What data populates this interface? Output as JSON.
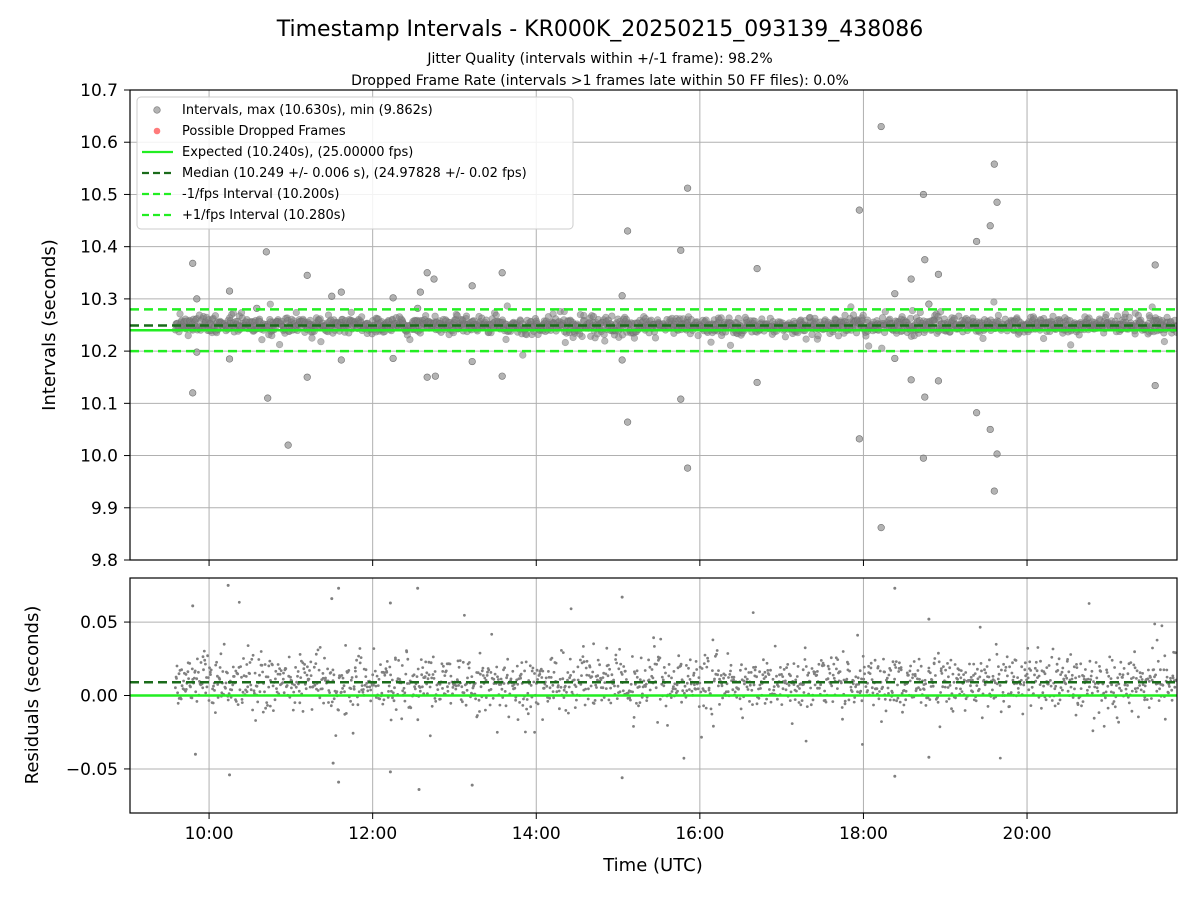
{
  "figure": {
    "title": "Timestamp Intervals - KR000K_20250215_093139_438086",
    "subtitle_1": "Jitter Quality (intervals within +/-1 frame): 98.2%",
    "subtitle_2": "Dropped Frame Rate (intervals >1 frames late within 50 FF files): 0.0%"
  },
  "chart_data": [
    {
      "type": "scatter",
      "name": "intervals-panel",
      "ylabel": "Intervals (seconds)",
      "xlabel": "",
      "xlim": [
        "09:02",
        "21:50"
      ],
      "ylim": [
        9.8,
        10.7
      ],
      "yticks": [
        "9.8",
        "9.9",
        "10.0",
        "10.1",
        "10.2",
        "10.3",
        "10.4",
        "10.5",
        "10.6",
        "10.7"
      ],
      "xticks": [
        "10:00",
        "12:00",
        "14:00",
        "16:00",
        "18:00",
        "20:00"
      ],
      "grid": true,
      "legend_position": "top-left",
      "legend": [
        "Intervals, max (10.630s), min (9.862s)",
        "Possible Dropped Frames",
        "Expected (10.240s), (25.00000 fps)",
        "Median (10.249 +/- 0.006 s), (24.97828 +/- 0.02 fps)",
        "-1/fps Interval (10.200s)",
        "+1/fps Interval (10.280s)"
      ],
      "data_range": {
        "start": "09:35",
        "end": "21:50",
        "center": 10.249,
        "spread": 0.012
      },
      "lines": [
        {
          "name": "Expected (10.240s), (25.00000 fps)",
          "y": 10.24,
          "style": "solid",
          "color": "#22ee22"
        },
        {
          "name": "Median (10.249 +/- 0.006 s), (24.97828 +/- 0.02 fps)",
          "y": 10.249,
          "style": "dashed",
          "color": "#1a6b1a"
        },
        {
          "name": "-1/fps Interval (10.200s)",
          "y": 10.2,
          "style": "dashed",
          "color": "#22ee22"
        },
        {
          "name": "+1/fps Interval (10.280s)",
          "y": 10.28,
          "style": "dashed",
          "color": "#22ee22"
        }
      ],
      "outliers": [
        {
          "x": "09:48",
          "y": 10.368
        },
        {
          "x": "09:48",
          "y": 10.12
        },
        {
          "x": "09:51",
          "y": 10.3
        },
        {
          "x": "09:51",
          "y": 10.198
        },
        {
          "x": "10:15",
          "y": 10.315
        },
        {
          "x": "10:15",
          "y": 10.185
        },
        {
          "x": "10:35",
          "y": 10.282
        },
        {
          "x": "10:42",
          "y": 10.39
        },
        {
          "x": "10:43",
          "y": 10.11
        },
        {
          "x": "10:58",
          "y": 10.02
        },
        {
          "x": "11:12",
          "y": 10.345
        },
        {
          "x": "11:12",
          "y": 10.15
        },
        {
          "x": "11:30",
          "y": 10.305
        },
        {
          "x": "11:37",
          "y": 10.313
        },
        {
          "x": "11:37",
          "y": 10.183
        },
        {
          "x": "12:15",
          "y": 10.302
        },
        {
          "x": "12:15",
          "y": 10.186
        },
        {
          "x": "12:33",
          "y": 10.282
        },
        {
          "x": "12:35",
          "y": 10.313
        },
        {
          "x": "12:40",
          "y": 10.35
        },
        {
          "x": "12:40",
          "y": 10.15
        },
        {
          "x": "12:45",
          "y": 10.338
        },
        {
          "x": "12:46",
          "y": 10.152
        },
        {
          "x": "13:13",
          "y": 10.325
        },
        {
          "x": "13:13",
          "y": 10.18
        },
        {
          "x": "13:35",
          "y": 10.35
        },
        {
          "x": "13:35",
          "y": 10.152
        },
        {
          "x": "15:03",
          "y": 10.306
        },
        {
          "x": "15:03",
          "y": 10.183
        },
        {
          "x": "15:07",
          "y": 10.43
        },
        {
          "x": "15:07",
          "y": 10.064
        },
        {
          "x": "15:46",
          "y": 10.393
        },
        {
          "x": "15:46",
          "y": 10.108
        },
        {
          "x": "15:51",
          "y": 10.512
        },
        {
          "x": "15:51",
          "y": 9.976
        },
        {
          "x": "16:42",
          "y": 10.358
        },
        {
          "x": "16:42",
          "y": 10.14
        },
        {
          "x": "17:57",
          "y": 10.47
        },
        {
          "x": "17:57",
          "y": 10.032
        },
        {
          "x": "18:13",
          "y": 10.63
        },
        {
          "x": "18:13",
          "y": 9.862
        },
        {
          "x": "18:23",
          "y": 10.31
        },
        {
          "x": "18:23",
          "y": 10.186
        },
        {
          "x": "18:35",
          "y": 10.338
        },
        {
          "x": "18:35",
          "y": 10.145
        },
        {
          "x": "18:44",
          "y": 10.5
        },
        {
          "x": "18:44",
          "y": 9.995
        },
        {
          "x": "18:45",
          "y": 10.375
        },
        {
          "x": "18:45",
          "y": 10.112
        },
        {
          "x": "18:48",
          "y": 10.29
        },
        {
          "x": "18:55",
          "y": 10.347
        },
        {
          "x": "18:55",
          "y": 10.143
        },
        {
          "x": "19:23",
          "y": 10.41
        },
        {
          "x": "19:23",
          "y": 10.082
        },
        {
          "x": "19:33",
          "y": 10.44
        },
        {
          "x": "19:33",
          "y": 10.05
        },
        {
          "x": "19:36",
          "y": 10.558
        },
        {
          "x": "19:36",
          "y": 9.932
        },
        {
          "x": "19:38",
          "y": 10.485
        },
        {
          "x": "19:38",
          "y": 10.003
        },
        {
          "x": "21:34",
          "y": 10.365
        },
        {
          "x": "21:34",
          "y": 10.134
        }
      ]
    },
    {
      "type": "scatter",
      "name": "residuals-panel",
      "ylabel": "Residuals (seconds)",
      "xlabel": "Time (UTC)",
      "xlim": [
        "09:02",
        "21:50"
      ],
      "ylim": [
        -0.08,
        0.08
      ],
      "yticks": [
        "−0.05",
        "0.00",
        "0.05"
      ],
      "ytick_values": [
        -0.05,
        0.0,
        0.05
      ],
      "xticks": [
        "10:00",
        "12:00",
        "14:00",
        "16:00",
        "18:00",
        "20:00"
      ],
      "grid": true,
      "lines": [
        {
          "name": "zero",
          "y": 0.0,
          "style": "solid",
          "color": "#22ee22"
        },
        {
          "name": "median offset",
          "y": 0.009,
          "style": "dashed",
          "color": "#1a6b1a"
        }
      ],
      "data_range": {
        "start": "09:35",
        "end": "21:50",
        "center": 0.009,
        "spread": 0.012
      },
      "outliers": [
        {
          "x": "09:48",
          "y": 0.061
        },
        {
          "x": "09:50",
          "y": -0.04
        },
        {
          "x": "10:14",
          "y": 0.075
        },
        {
          "x": "10:15",
          "y": -0.054
        },
        {
          "x": "11:30",
          "y": 0.066
        },
        {
          "x": "11:35",
          "y": 0.073
        },
        {
          "x": "11:31",
          "y": -0.046
        },
        {
          "x": "11:35",
          "y": -0.059
        },
        {
          "x": "12:13",
          "y": 0.063
        },
        {
          "x": "12:13",
          "y": -0.052
        },
        {
          "x": "12:33",
          "y": 0.073
        },
        {
          "x": "12:34",
          "y": -0.064
        },
        {
          "x": "13:13",
          "y": -0.061
        },
        {
          "x": "15:03",
          "y": 0.067
        },
        {
          "x": "15:03",
          "y": -0.056
        },
        {
          "x": "18:23",
          "y": 0.073
        },
        {
          "x": "18:23",
          "y": -0.055
        },
        {
          "x": "18:48",
          "y": 0.052
        },
        {
          "x": "18:48",
          "y": -0.042
        }
      ]
    }
  ],
  "colors": {
    "scatter": "#808080",
    "dropped": "#ff5a5a",
    "expected": "#22ee22",
    "median": "#1a6b1a",
    "grid": "#b0b0b0"
  }
}
